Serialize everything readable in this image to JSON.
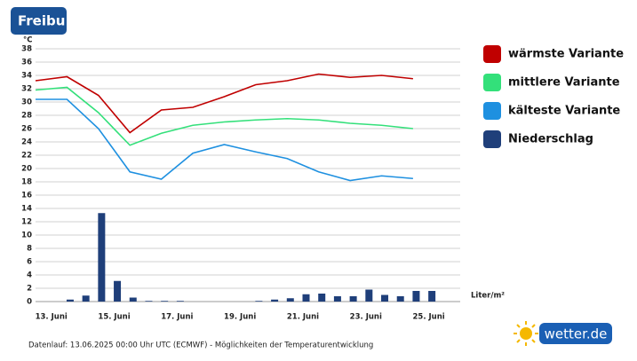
{
  "chart_data": {
    "type": "line",
    "title": "Freibu",
    "y_label": "°C",
    "precip_unit_label": "Liter/m²",
    "footer": "Datenlauf: 13.06.2025 00:00 Uhr UTC (ECMWF) - Möglichkeiten der Temperaturentwicklung",
    "logo": "wetter.de",
    "xlim": [
      0,
      13.5
    ],
    "xticks": [
      {
        "value": 0.5,
        "label": "13. Juni"
      },
      {
        "value": 2.5,
        "label": "15. Juni"
      },
      {
        "value": 4.5,
        "label": "17. Juni"
      },
      {
        "value": 6.5,
        "label": "19. Juni"
      },
      {
        "value": 8.5,
        "label": "21. Juni"
      },
      {
        "value": 10.5,
        "label": "23. Juni"
      },
      {
        "value": 12.5,
        "label": "25. Juni"
      }
    ],
    "ylim": [
      0,
      38
    ],
    "yticks": [
      0,
      2,
      4,
      6,
      8,
      10,
      12,
      14,
      16,
      18,
      20,
      22,
      24,
      26,
      28,
      30,
      32,
      34,
      36,
      38
    ],
    "grid": true,
    "series": [
      {
        "name": "wärmste Variante",
        "color": "#c00000",
        "x": [
          0,
          1,
          2,
          3,
          4,
          5,
          6,
          7,
          8,
          9,
          10,
          11,
          12
        ],
        "values": [
          33.2,
          33.8,
          31,
          25.4,
          28.8,
          29.2,
          30.8,
          32.6,
          33.2,
          34.2,
          33.7,
          34,
          33.5
        ]
      },
      {
        "name": "mittlere Variante",
        "color": "#33e07a",
        "x": [
          0,
          1,
          2,
          3,
          4,
          5,
          6,
          7,
          8,
          9,
          10,
          11,
          12
        ],
        "values": [
          31.8,
          32.2,
          28.4,
          23.5,
          25.3,
          26.5,
          27,
          27.3,
          27.5,
          27.3,
          26.8,
          26.5,
          26
        ]
      },
      {
        "name": "kälteste Variante",
        "color": "#1e90e0",
        "x": [
          0,
          1,
          2,
          3,
          4,
          5,
          6,
          7,
          8,
          9,
          10,
          11,
          12
        ],
        "values": [
          30.4,
          30.4,
          26,
          19.5,
          18.4,
          22.3,
          23.6,
          22.5,
          21.5,
          19.5,
          18.2,
          18.9,
          18.5
        ]
      },
      {
        "name": "Niederschlag",
        "type": "bar",
        "color": "#1f3f7a",
        "x": [
          1.1,
          1.6,
          2.1,
          2.6,
          3.1,
          3.6,
          4.1,
          4.6,
          5.1,
          5.6,
          6.1,
          6.6,
          7.1,
          7.6,
          8.1,
          8.6,
          9.1,
          9.6,
          10.1,
          10.6,
          11.1,
          11.6,
          12.1,
          12.6
        ],
        "values": [
          0.3,
          0.9,
          13.3,
          3.1,
          0.6,
          0.1,
          0.1,
          0.1,
          0,
          0,
          0,
          0,
          0.1,
          0.3,
          0.5,
          1.1,
          1.2,
          0.8,
          0.8,
          1.8,
          1.0,
          0.8,
          1.6,
          1.6
        ]
      }
    ]
  }
}
